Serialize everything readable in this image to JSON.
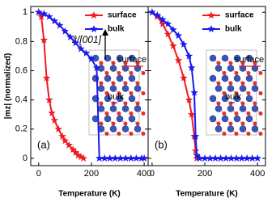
{
  "chart_data": [
    {
      "type": "line",
      "panel_label": "(a)",
      "xlabel": "Temperature (K)",
      "ylabel": "|mz| (normalized)",
      "xlim": [
        -30,
        415
      ],
      "ylim": [
        -0.05,
        1.04
      ],
      "xticks": [
        0,
        200,
        400
      ],
      "yticks": [
        0.0,
        0.2,
        0.4,
        0.6,
        0.8,
        1.0
      ],
      "show_ytick_labels": true,
      "legend": "upper right",
      "inset_labels": [
        "surface",
        "bulk"
      ],
      "axis_annotation": "ẑ/[001]",
      "series": [
        {
          "name": "surface",
          "color": "#ee1c24",
          "x": [
            0,
            10,
            20,
            30,
            40,
            50,
            60,
            75,
            90,
            100,
            115,
            130,
            140,
            150,
            160,
            170
          ],
          "values": [
            1.0,
            0.97,
            0.81,
            0.55,
            0.4,
            0.31,
            0.26,
            0.2,
            0.15,
            0.12,
            0.09,
            0.06,
            0.04,
            0.02,
            0.01,
            0.0
          ]
        },
        {
          "name": "bulk",
          "color": "#1a1aee",
          "x": [
            0,
            20,
            40,
            60,
            80,
            100,
            120,
            140,
            160,
            180,
            200,
            220,
            230,
            250,
            270,
            290,
            310,
            330,
            350,
            370,
            390,
            400
          ],
          "values": [
            1.0,
            0.99,
            0.97,
            0.94,
            0.91,
            0.87,
            0.83,
            0.79,
            0.75,
            0.72,
            0.68,
            0.62,
            0.0,
            0.0,
            0.0,
            0.0,
            0.0,
            0.0,
            0.0,
            0.0,
            0.0,
            0.0
          ]
        }
      ]
    },
    {
      "type": "line",
      "panel_label": "(b)",
      "xlabel": "Temperature (K)",
      "xlim": [
        -15,
        430
      ],
      "ylim": [
        -0.05,
        1.04
      ],
      "xticks": [
        0,
        200,
        400
      ],
      "yticks": [
        0.0,
        0.2,
        0.4,
        0.6,
        0.8,
        1.0
      ],
      "show_ytick_labels": false,
      "legend": "upper right",
      "inset_labels": [
        "surface",
        "bulk"
      ],
      "series": [
        {
          "name": "surface",
          "color": "#ee1c24",
          "x": [
            0,
            20,
            40,
            60,
            80,
            100,
            120,
            140,
            150,
            160,
            165,
            170
          ],
          "values": [
            1.0,
            0.97,
            0.92,
            0.85,
            0.77,
            0.67,
            0.55,
            0.4,
            0.3,
            0.15,
            0.05,
            0.0
          ]
        },
        {
          "name": "bulk",
          "color": "#1a1aee",
          "x": [
            0,
            20,
            40,
            60,
            80,
            100,
            120,
            140,
            150,
            160,
            165,
            170,
            180,
            200,
            220,
            240,
            260,
            280,
            300,
            320,
            340,
            360,
            380,
            400
          ],
          "values": [
            1.0,
            0.98,
            0.95,
            0.92,
            0.88,
            0.84,
            0.78,
            0.7,
            0.62,
            0.45,
            0.15,
            0.02,
            0.0,
            0.0,
            0.0,
            0.0,
            0.0,
            0.0,
            0.0,
            0.0,
            0.0,
            0.0,
            0.0,
            0.0
          ]
        }
      ]
    }
  ]
}
